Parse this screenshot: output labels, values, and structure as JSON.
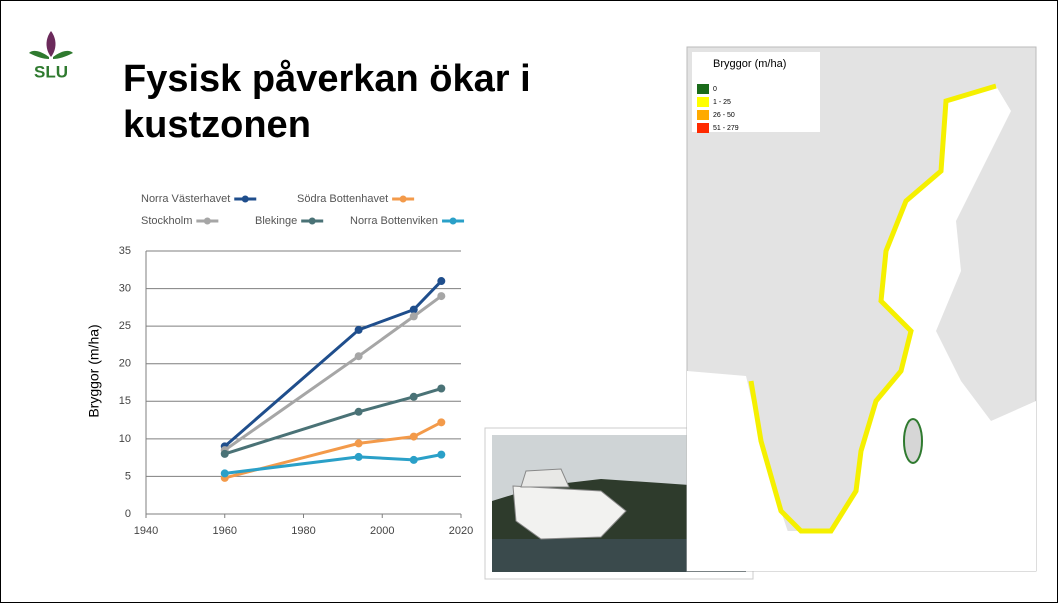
{
  "logo": "SLU",
  "title": "Fysisk påverkan ökar i kustzonen",
  "chart_data": {
    "type": "line",
    "y_label": "Bryggor (m/ha)",
    "x": [
      1960,
      1994,
      2008,
      2015
    ],
    "series": [
      {
        "name": "Norra Västerhavet",
        "color": "#1f4e8c",
        "values": [
          9,
          24.5,
          27.2,
          31
        ]
      },
      {
        "name": "Södra Bottenhavet",
        "color": "#f39a4a",
        "values": [
          4.8,
          9.4,
          10.3,
          12.2
        ]
      },
      {
        "name": "Stockholm",
        "color": "#a6a6a6",
        "values": [
          8.5,
          21,
          26.3,
          29
        ]
      },
      {
        "name": "Blekinge",
        "color": "#4a7276",
        "values": [
          8,
          13.6,
          15.6,
          16.7
        ]
      },
      {
        "name": "Norra Bottenviken",
        "color": "#2aa0c8",
        "values": [
          5.4,
          7.6,
          7.2,
          7.9
        ]
      }
    ],
    "xlim": [
      1940,
      2020
    ],
    "xticks": [
      1940,
      1960,
      1980,
      2000,
      2020
    ],
    "ylim": [
      0,
      35
    ],
    "yticks": [
      0,
      5,
      10,
      15,
      20,
      25,
      30,
      35
    ],
    "grid": true
  },
  "map": {
    "legend_title": "Bryggor (m/ha)",
    "legend": [
      {
        "label": "0",
        "color": "#1a6b1a"
      },
      {
        "label": "1 - 25",
        "color": "#ffff00"
      },
      {
        "label": "26 - 50",
        "color": "#ffaa00"
      },
      {
        "label": "51 - 279",
        "color": "#ff2a00"
      }
    ]
  }
}
